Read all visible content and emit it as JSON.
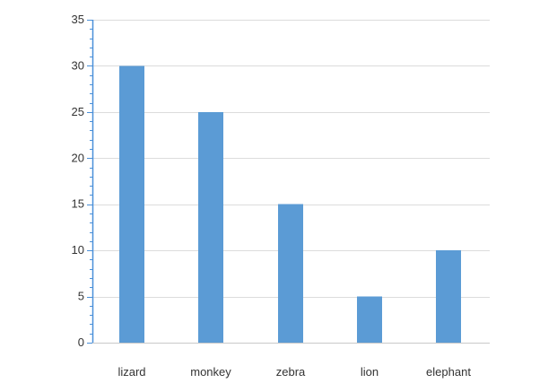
{
  "chart_data": {
    "type": "bar",
    "categories": [
      "lizard",
      "monkey",
      "zebra",
      "lion",
      "elephant"
    ],
    "values": [
      30,
      25,
      15,
      5,
      10
    ],
    "title": "",
    "xlabel": "",
    "ylabel": "",
    "ylim": [
      0,
      35
    ],
    "y_ticks": [
      0,
      5,
      10,
      15,
      20,
      25,
      30,
      35
    ],
    "bar_color": "#5b9bd5",
    "axis_color": "#4a90d9",
    "grid": true,
    "legend": "none"
  }
}
